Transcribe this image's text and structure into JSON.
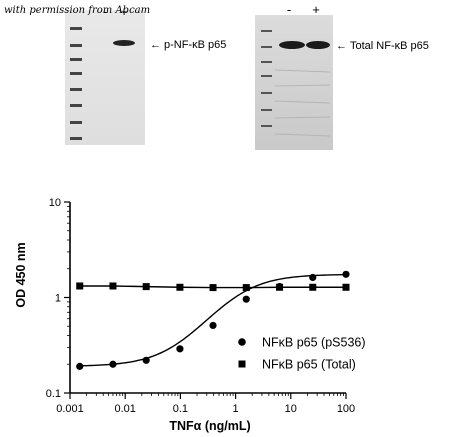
{
  "caption": "with permission from Abcam",
  "blots": [
    {
      "lanes": [
        "-",
        "+"
      ],
      "band_label": "p-NF-κB p65",
      "arrow": "←"
    },
    {
      "lanes": [
        "-",
        "+"
      ],
      "band_label": "Total NF-κB p65",
      "arrow": "←"
    }
  ],
  "chart_data": {
    "type": "line",
    "xlabel": "TNFα (ng/mL)",
    "ylabel": "OD 450 nm",
    "xscale": "log",
    "yscale": "log",
    "xlim": [
      0.001,
      100
    ],
    "ylim": [
      0.1,
      10
    ],
    "xticks": [
      "0.001",
      "0.01",
      "0.1",
      "1",
      "10",
      "100"
    ],
    "yticks": [
      "0.1",
      "1",
      "10"
    ],
    "legend_position": "bottom-right",
    "series": [
      {
        "name": "NFκB p65 (pS536)",
        "marker": "circle",
        "x": [
          0.0015,
          0.006,
          0.024,
          0.098,
          0.39,
          1.56,
          6.25,
          25,
          100
        ],
        "y": [
          0.19,
          0.2,
          0.22,
          0.29,
          0.51,
          0.96,
          1.3,
          1.62,
          1.75
        ]
      },
      {
        "name": "NFκB p65 (Total)",
        "marker": "square",
        "x": [
          0.0015,
          0.006,
          0.024,
          0.098,
          0.39,
          1.56,
          6.25,
          25,
          100
        ],
        "y": [
          1.32,
          1.32,
          1.3,
          1.28,
          1.27,
          1.27,
          1.28,
          1.28,
          1.28
        ]
      }
    ]
  }
}
